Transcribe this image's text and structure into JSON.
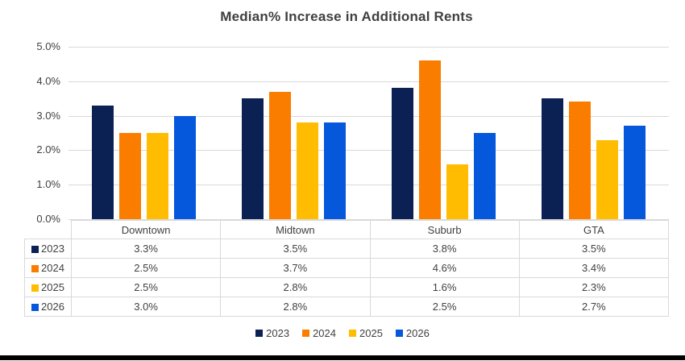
{
  "chart_data": {
    "type": "bar",
    "title": "Median% Increase in Additional Rents",
    "categories": [
      "Downtown",
      "Midtown",
      "Suburb",
      "GTA"
    ],
    "series": [
      {
        "name": "2023",
        "color": "#0B2053",
        "values": [
          3.3,
          3.5,
          3.8,
          3.5
        ],
        "display": [
          "3.3%",
          "3.5%",
          "3.8%",
          "3.5%"
        ]
      },
      {
        "name": "2024",
        "color": "#FB7D00",
        "values": [
          2.5,
          3.7,
          4.6,
          3.4
        ],
        "display": [
          "2.5%",
          "3.7%",
          "4.6%",
          "3.4%"
        ]
      },
      {
        "name": "2025",
        "color": "#FFBC00",
        "values": [
          2.5,
          2.8,
          1.6,
          2.3
        ],
        "display": [
          "2.5%",
          "2.8%",
          "1.6%",
          "2.3%"
        ]
      },
      {
        "name": "2026",
        "color": "#0557DB",
        "values": [
          3.0,
          2.8,
          2.5,
          2.7
        ],
        "display": [
          "3.0%",
          "2.8%",
          "2.5%",
          "2.7%"
        ]
      }
    ],
    "xlabel": "",
    "ylabel": "",
    "ylim": [
      0,
      5
    ],
    "yticks": [
      "5.0%",
      "4.0%",
      "3.0%",
      "2.0%",
      "1.0%",
      "0.0%"
    ],
    "grid": true,
    "legend_position": "bottom",
    "data_table_shown": true
  },
  "colors": {
    "title_text": "#3F3F3F",
    "axis_text": "#404040",
    "gridline": "#D9D9D9",
    "table_border": "#D9D9D9",
    "bottom_rule": "#000000"
  }
}
